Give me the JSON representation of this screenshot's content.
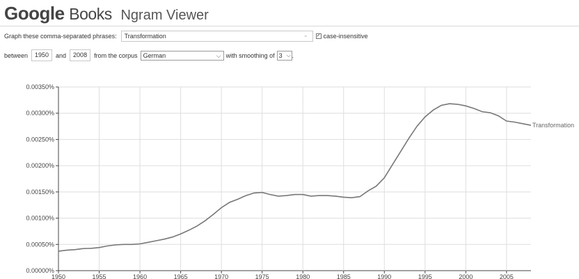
{
  "header": {
    "logo_google": "Google",
    "logo_books": "Books",
    "title": "Ngram Viewer"
  },
  "query": {
    "phrases_label": "Graph these comma-separated phrases:",
    "phrases_value": "Transformation",
    "case_insensitive_checked": true,
    "case_insensitive_label": "case-insensitive",
    "between_label": "between",
    "start_year": "1950",
    "and_label": "and",
    "end_year": "2008",
    "corpus_label": "from the corpus",
    "corpus_value": "German",
    "smoothing_label": "with smoothing of",
    "smoothing_value": "3",
    "trailing": "."
  },
  "chart_data": {
    "type": "line",
    "title": "",
    "xlabel": "",
    "ylabel": "",
    "xlim": [
      1950,
      2008
    ],
    "ylim": [
      0,
      0.0035
    ],
    "grid": true,
    "y_ticks": [
      "0.00000%",
      "0.00050%",
      "0.00100%",
      "0.00150%",
      "0.00200%",
      "0.00250%",
      "0.00300%",
      "0.00350%"
    ],
    "x_ticks": [
      "1950",
      "1955",
      "1960",
      "1965",
      "1970",
      "1975",
      "1980",
      "1985",
      "1990",
      "1995",
      "2000",
      "2005"
    ],
    "series": [
      {
        "name": "Transformation",
        "color": "#777777",
        "x": [
          1950,
          1951,
          1952,
          1953,
          1954,
          1955,
          1956,
          1957,
          1958,
          1959,
          1960,
          1961,
          1962,
          1963,
          1964,
          1965,
          1966,
          1967,
          1968,
          1969,
          1970,
          1971,
          1972,
          1973,
          1974,
          1975,
          1976,
          1977,
          1978,
          1979,
          1980,
          1981,
          1982,
          1983,
          1984,
          1985,
          1986,
          1987,
          1988,
          1989,
          1990,
          1991,
          1992,
          1993,
          1994,
          1995,
          1996,
          1997,
          1998,
          1999,
          2000,
          2001,
          2002,
          2003,
          2004,
          2005,
          2006,
          2007,
          2008
        ],
        "values": [
          0.00037,
          0.00039,
          0.0004,
          0.00042,
          0.000425,
          0.00044,
          0.00047,
          0.00049,
          0.0005,
          0.0005,
          0.00051,
          0.00054,
          0.00057,
          0.0006,
          0.00064,
          0.0007,
          0.00077,
          0.00085,
          0.00095,
          0.00107,
          0.0012,
          0.0013,
          0.00136,
          0.00143,
          0.00148,
          0.00149,
          0.00145,
          0.00142,
          0.00143,
          0.00145,
          0.00145,
          0.00142,
          0.00143,
          0.00143,
          0.00142,
          0.0014,
          0.00139,
          0.00141,
          0.00152,
          0.00161,
          0.00177,
          0.00202,
          0.00227,
          0.00252,
          0.00275,
          0.00293,
          0.00306,
          0.00315,
          0.00318,
          0.00317,
          0.00314,
          0.00309,
          0.00303,
          0.00301,
          0.00295,
          0.00285,
          0.00283,
          0.0028,
          0.00277
        ]
      }
    ]
  }
}
